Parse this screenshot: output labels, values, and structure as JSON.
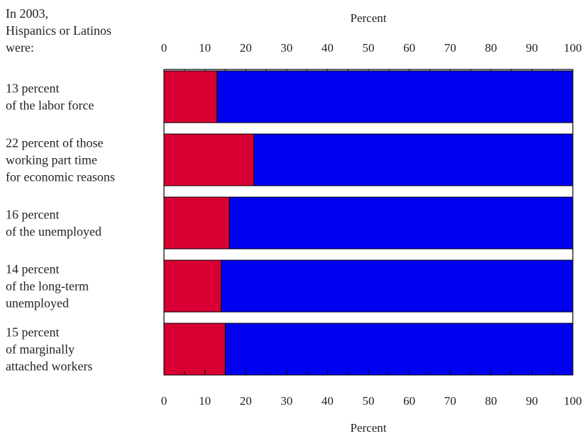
{
  "chart_data": {
    "type": "bar",
    "stacked": true,
    "orientation": "horizontal",
    "intro_label": [
      "In 2003,",
      "Hispanics or Latinos",
      "were:"
    ],
    "axis_title_top": "Percent",
    "axis_title_bottom": "Percent",
    "xlim": [
      0,
      100
    ],
    "ticks": [
      0,
      10,
      20,
      30,
      40,
      50,
      60,
      70,
      80,
      90,
      100
    ],
    "categories": [
      [
        "13 percent",
        "of the labor force"
      ],
      [
        "22 percent of those",
        "working part time",
        "for economic reasons"
      ],
      [
        "16 percent",
        "of the unemployed"
      ],
      [
        "14 percent",
        "of the long-term",
        "unemployed"
      ],
      [
        "15 percent",
        "of marginally",
        "attached workers"
      ]
    ],
    "series": [
      {
        "values": [
          13,
          22,
          16,
          14,
          15
        ],
        "color": "#d80032"
      },
      {
        "values": [
          87,
          78,
          84,
          86,
          85
        ],
        "color": "#0000f0"
      }
    ],
    "grid": false,
    "legend": "none"
  }
}
